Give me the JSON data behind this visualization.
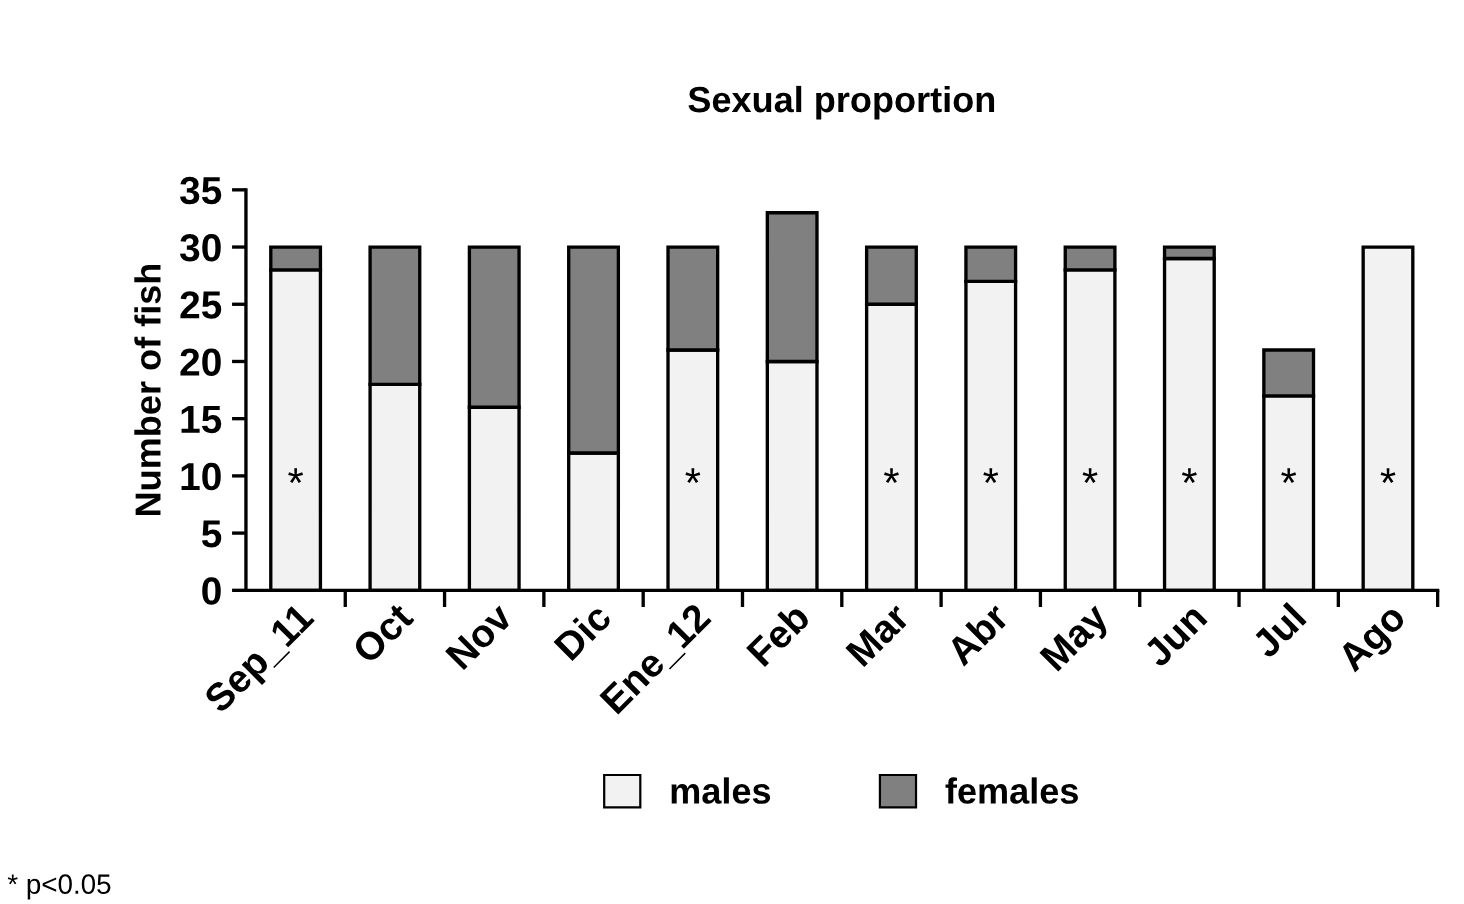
{
  "chart_data": {
    "type": "bar",
    "title": "Sexual proportion",
    "ylabel": "Number of fish",
    "stacked": true,
    "categories": [
      "Sep_11",
      "Oct",
      "Nov",
      "Dic",
      "Ene_12",
      "Feb",
      "Mar",
      "Abr",
      "May",
      "Jun",
      "Jul",
      "Ago"
    ],
    "series": [
      {
        "name": "males",
        "color": "#f2f2f2",
        "values": [
          28,
          18,
          16,
          12,
          21,
          20,
          25,
          27,
          28,
          29,
          17,
          30
        ],
        "value_labels": [
          "*",
          null,
          null,
          null,
          "*",
          null,
          "*",
          "*",
          "*",
          "*",
          "*",
          "*"
        ]
      },
      {
        "name": "females",
        "color": "#808080",
        "values": [
          2,
          12,
          14,
          18,
          9,
          13,
          5,
          3,
          2,
          1,
          4,
          0
        ]
      }
    ],
    "ylim": [
      0,
      35
    ],
    "yticks": [
      0,
      5,
      10,
      15,
      20,
      25,
      30,
      35
    ],
    "legend": "bottom",
    "grid": false,
    "annotations": [
      "* p<0.05"
    ]
  }
}
